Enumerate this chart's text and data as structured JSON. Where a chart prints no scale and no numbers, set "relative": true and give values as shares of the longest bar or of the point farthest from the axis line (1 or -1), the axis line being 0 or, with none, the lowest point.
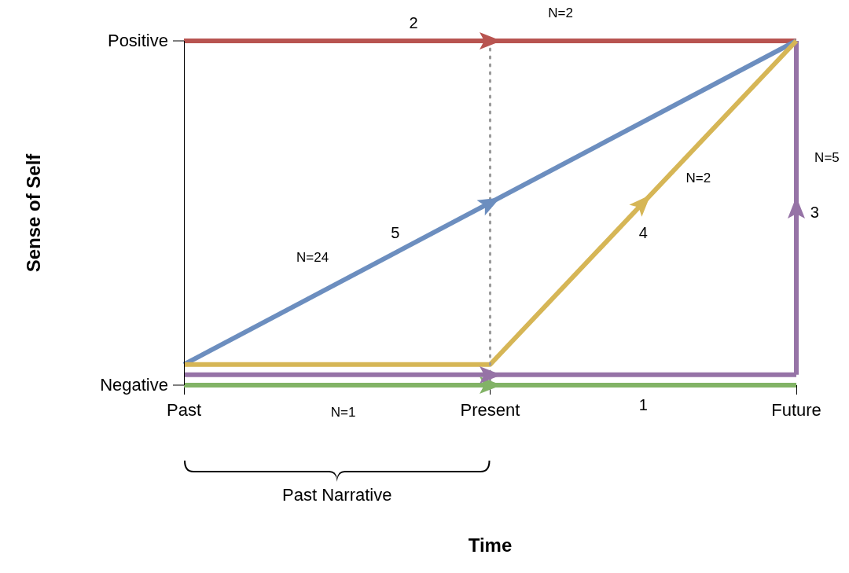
{
  "chart_data": {
    "type": "line",
    "relative": true,
    "categories": [
      "Past",
      "Present",
      "Future"
    ],
    "marker": "none",
    "line_style": "solid",
    "series": [
      {
        "color": "#82b366",
        "x": [
          "Past",
          "Future"
        ],
        "values": [
          0,
          0
        ]
      },
      {
        "color": "#d6b656",
        "x": [
          "Past",
          "Present",
          "Future"
        ],
        "values": [
          0.06,
          0.06,
          1
        ]
      },
      {
        "color": "#6c8ebf",
        "x": [
          "Past",
          "Future"
        ],
        "values": [
          0.06,
          1
        ]
      },
      {
        "color": "#b85450",
        "x": [
          "Past",
          "Future"
        ],
        "values": [
          1,
          1
        ]
      },
      {
        "color": "#9673a6",
        "x": [
          "Past",
          "Future"
        ],
        "values": [
          0.03,
          0.03
        ]
      },
      {
        "color": "#9673a6",
        "x": [
          "Future",
          "Future"
        ],
        "values": [
          0.03,
          1
        ]
      }
    ],
    "ref_lines": [
      {
        "axis": "x",
        "value": "Present",
        "color": "#999999",
        "line_style": "dotted"
      }
    ],
    "annotations": [
      "Positive",
      "Negative",
      "2",
      "N=2",
      "N=5",
      "3",
      "N=2",
      "4",
      "5",
      "N=24",
      "N=1",
      "1",
      "Past Narrative",
      "Time",
      "Sense of Self"
    ]
  }
}
